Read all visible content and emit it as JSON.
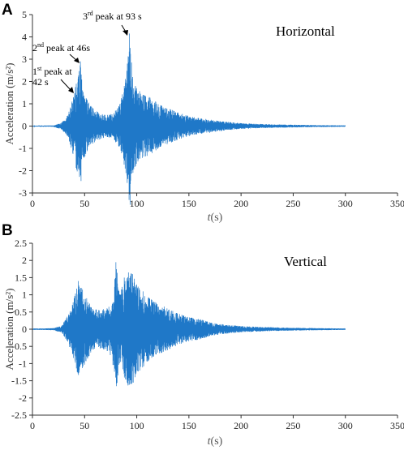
{
  "chart_data": [
    {
      "type": "line",
      "panel": "A",
      "title": "Horizontal",
      "xlabel_italic": "t",
      "xlabel_unit": "(s)",
      "ylabel": "Acceleration (m/s²)",
      "xlim": [
        0,
        350
      ],
      "ylim": [
        -3,
        5
      ],
      "xticks": [
        0,
        50,
        100,
        150,
        200,
        250,
        300,
        350
      ],
      "yticks": [
        -3,
        -2,
        -1,
        0,
        1,
        2,
        3,
        4,
        5
      ],
      "color": "#1f78c8",
      "series": [
        {
          "envelope": [
            [
              0,
              0.02
            ],
            [
              10,
              0.02
            ],
            [
              20,
              0.03
            ],
            [
              28,
              0.15
            ],
            [
              34,
              0.5
            ],
            [
              38,
              1.1
            ],
            [
              42,
              1.9
            ],
            [
              44,
              2.2
            ],
            [
              46,
              2.9
            ],
            [
              48,
              1.6
            ],
            [
              52,
              1.2
            ],
            [
              56,
              0.9
            ],
            [
              60,
              0.7
            ],
            [
              66,
              0.55
            ],
            [
              72,
              0.5
            ],
            [
              78,
              0.6
            ],
            [
              84,
              1.0
            ],
            [
              88,
              1.8
            ],
            [
              91,
              2.8
            ],
            [
              93,
              4.15
            ],
            [
              96,
              2.2
            ],
            [
              100,
              1.7
            ],
            [
              106,
              1.4
            ],
            [
              112,
              1.3
            ],
            [
              118,
              1.1
            ],
            [
              124,
              0.9
            ],
            [
              130,
              0.8
            ],
            [
              140,
              0.6
            ],
            [
              150,
              0.45
            ],
            [
              160,
              0.35
            ],
            [
              170,
              0.3
            ],
            [
              180,
              0.22
            ],
            [
              200,
              0.13
            ],
            [
              225,
              0.08
            ],
            [
              250,
              0.06
            ],
            [
              275,
              0.04
            ],
            [
              300,
              0.03
            ]
          ],
          "x_range": [
            0,
            300
          ]
        }
      ],
      "annotations": [
        {
          "ordinal": "1",
          "sup": "st",
          "text_a": " peak at",
          "text_b": "42 s",
          "x": 42,
          "y": 2.2
        },
        {
          "ordinal": "2",
          "sup": "nd",
          "text_a": " peak at 46s",
          "x": 46,
          "y": 2.9
        },
        {
          "ordinal": "3",
          "sup": "rd",
          "text_a": " peak at 93 s",
          "x": 93,
          "y": 4.15
        }
      ]
    },
    {
      "type": "line",
      "panel": "B",
      "title": "Vertical",
      "xlabel_italic": "t",
      "xlabel_unit": "(s)",
      "ylabel": "Acceleration (m/s²)",
      "xlim": [
        0,
        350
      ],
      "ylim": [
        -2.5,
        2.5
      ],
      "xticks": [
        0,
        50,
        100,
        150,
        200,
        250,
        300,
        350
      ],
      "yticks": [
        -2.5,
        -2,
        -1.5,
        -1,
        -0.5,
        0,
        0.5,
        1,
        1.5,
        2,
        2.5
      ],
      "color": "#1f78c8",
      "series": [
        {
          "envelope": [
            [
              0,
              0.02
            ],
            [
              10,
              0.02
            ],
            [
              20,
              0.03
            ],
            [
              28,
              0.1
            ],
            [
              34,
              0.4
            ],
            [
              40,
              0.9
            ],
            [
              44,
              1.4
            ],
            [
              48,
              1.15
            ],
            [
              52,
              0.9
            ],
            [
              58,
              0.6
            ],
            [
              64,
              0.55
            ],
            [
              70,
              0.6
            ],
            [
              76,
              0.8
            ],
            [
              80,
              1.95
            ],
            [
              84,
              1.0
            ],
            [
              88,
              1.5
            ],
            [
              92,
              1.65
            ],
            [
              96,
              1.6
            ],
            [
              100,
              1.3
            ],
            [
              106,
              1.1
            ],
            [
              112,
              0.9
            ],
            [
              120,
              0.75
            ],
            [
              130,
              0.6
            ],
            [
              140,
              0.45
            ],
            [
              150,
              0.35
            ],
            [
              160,
              0.3
            ],
            [
              170,
              0.2
            ],
            [
              180,
              0.15
            ],
            [
              200,
              0.09
            ],
            [
              225,
              0.06
            ],
            [
              250,
              0.04
            ],
            [
              275,
              0.03
            ],
            [
              300,
              0.02
            ]
          ],
          "x_range": [
            0,
            300
          ]
        }
      ]
    }
  ]
}
